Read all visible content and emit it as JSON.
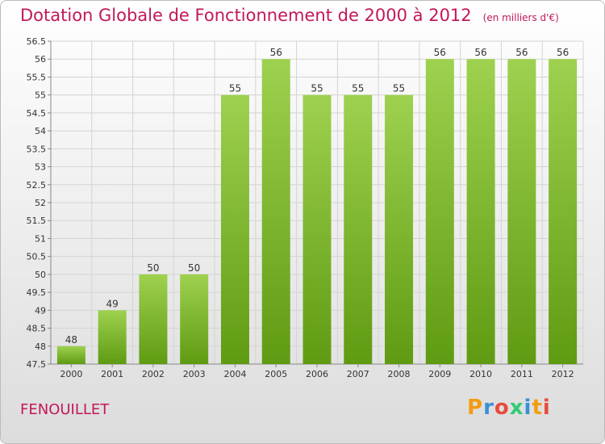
{
  "header": {
    "title": "Dotation Globale de Fonctionnement de 2000 à 2012",
    "unit": "(en milliers d'€)"
  },
  "footer": {
    "commune": "FENOUILLET",
    "brand": "Proxiti"
  },
  "colors": {
    "title": "#c2185b",
    "bar_top": "#9ed14f",
    "bar_bottom": "#5f9b12",
    "grid": "#d4d4d4",
    "logo_letters": [
      "#f39c12",
      "#3a8fd6",
      "#e74c3c",
      "#2ecc71",
      "#3a8fd6",
      "#f39c12",
      "#e74c3c"
    ]
  },
  "chart_data": {
    "type": "bar",
    "title": "Dotation Globale de Fonctionnement de 2000 à 2012",
    "subtitle": "(en milliers d'€)",
    "categories": [
      "2000",
      "2001",
      "2002",
      "2003",
      "2004",
      "2005",
      "2006",
      "2007",
      "2008",
      "2009",
      "2010",
      "2011",
      "2012"
    ],
    "values": [
      48,
      49,
      50,
      50,
      55,
      56,
      55,
      55,
      55,
      56,
      56,
      56,
      56
    ],
    "ylim": [
      47.5,
      56.5
    ],
    "yticks": [
      "47.5",
      "48",
      "48.5",
      "49",
      "49.5",
      "50",
      "50.5",
      "51",
      "51.5",
      "52",
      "52.5",
      "53",
      "53.5",
      "54",
      "54.5",
      "55",
      "55.5",
      "56",
      "56.5"
    ],
    "grid": true,
    "legend": "none"
  }
}
